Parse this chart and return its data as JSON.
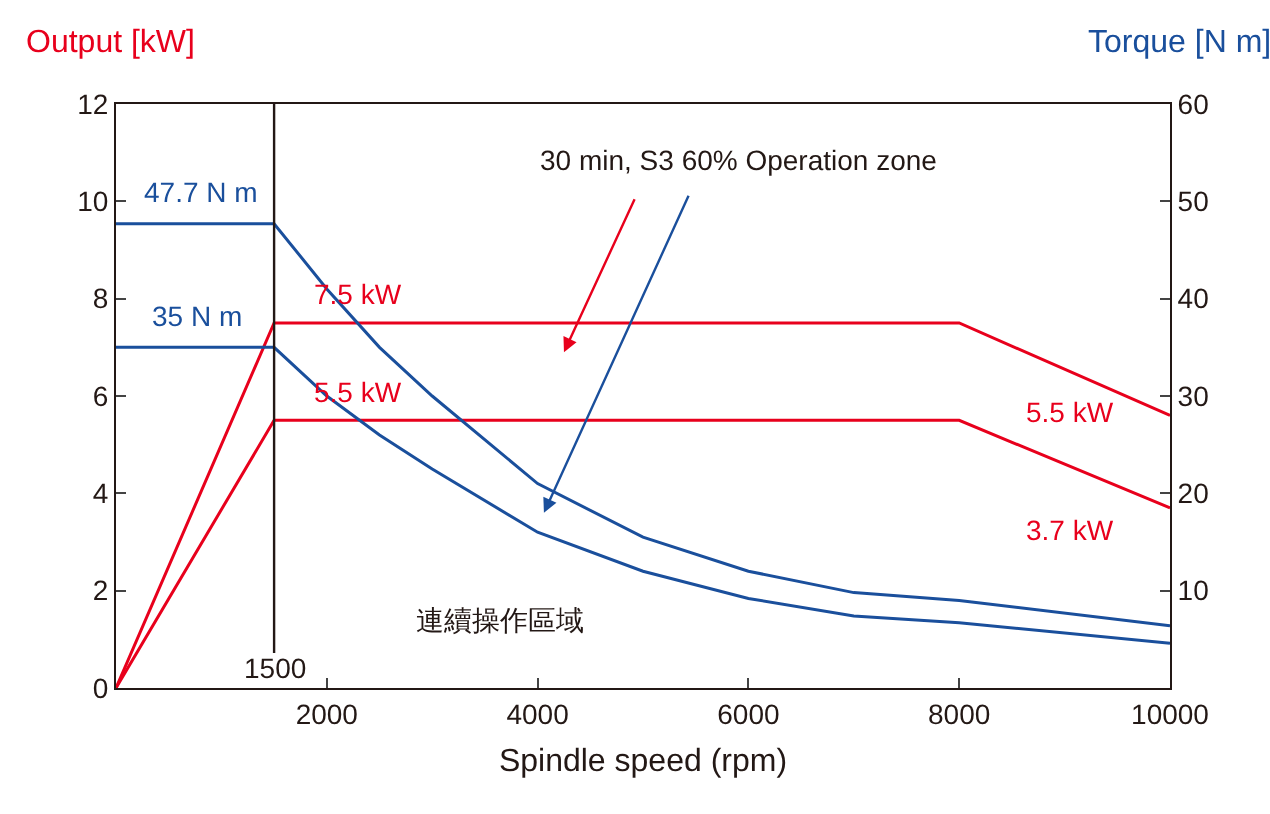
{
  "chart_data": {
    "type": "line",
    "xlabel": "Spindle speed (rpm)",
    "ylabel": "Output [kW]",
    "y2label": "Torque [N m]",
    "series": [
      {
        "color": "#e8001c",
        "x": [
          0,
          1500,
          8000,
          10000
        ],
        "values": [
          0,
          7.5,
          7.5,
          5.6
        ]
      },
      {
        "color": "#e8001c",
        "x": [
          0,
          1500,
          8000,
          10000
        ],
        "values": [
          0,
          5.5,
          5.5,
          3.7
        ]
      },
      {
        "color": "#1a4f9c",
        "axis": "y2",
        "x": [
          0,
          1500,
          2000,
          2500,
          3000,
          4000,
          5000,
          6000,
          7000,
          8000,
          10000
        ],
        "values": [
          47.7,
          47.7,
          41,
          35,
          30,
          21,
          15.5,
          12,
          9.8,
          9.0,
          6.4
        ]
      },
      {
        "color": "#1a4f9c",
        "axis": "y2",
        "x": [
          0,
          1500,
          2000,
          2500,
          3000,
          4000,
          5000,
          6000,
          7000,
          8000,
          10000
        ],
        "values": [
          35,
          35,
          30,
          26,
          22.5,
          16,
          12,
          9.2,
          7.4,
          6.7,
          4.6
        ]
      }
    ],
    "xlim": [
      0,
      10000
    ],
    "xticks": [
      2000,
      4000,
      6000,
      8000,
      10000
    ],
    "ylim": [
      0,
      12
    ],
    "yticks": [
      0,
      2,
      4,
      6,
      8,
      10,
      12
    ],
    "y2lim": [
      0,
      60
    ],
    "y2ticks": [
      {
        "value": 0,
        "label": null
      },
      10,
      20,
      30,
      40,
      50,
      60
    ],
    "ref_lines": [
      {
        "axis": "x",
        "value": 1500,
        "label": "1500",
        "color": "#231815"
      }
    ],
    "annotations": [
      "47.7 N m",
      "35 N m",
      "7.5 kW",
      "5.5 kW",
      "5.5 kW",
      "3.7 kW",
      "30 min, S3 60% Operation zone",
      "連續操作區域"
    ],
    "marker": "none",
    "line_style": "solid"
  }
}
